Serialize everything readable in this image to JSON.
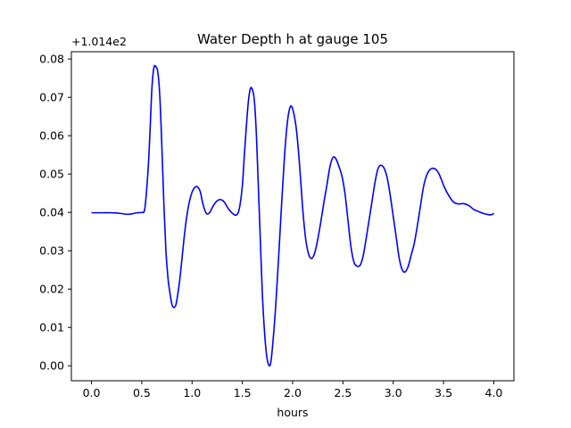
{
  "chart_data": {
    "type": "line",
    "title": "Water Depth h at gauge 105",
    "xlabel": "hours",
    "ylabel": "",
    "y_offset_label": "+1.014e2",
    "xlim": [
      -0.2,
      4.2
    ],
    "ylim": [
      -0.0039,
      0.0819
    ],
    "grid": false,
    "legend": "none",
    "x_ticks": [
      0.0,
      0.5,
      1.0,
      1.5,
      2.0,
      2.5,
      3.0,
      3.5,
      4.0
    ],
    "x_tick_labels": [
      "0.0",
      "0.5",
      "1.0",
      "1.5",
      "2.0",
      "2.5",
      "3.0",
      "3.5",
      "4.0"
    ],
    "y_ticks": [
      0.0,
      0.01,
      0.02,
      0.03,
      0.04,
      0.05,
      0.06,
      0.07,
      0.08
    ],
    "y_tick_labels": [
      "0.00",
      "0.01",
      "0.02",
      "0.03",
      "0.04",
      "0.05",
      "0.06",
      "0.07",
      "0.08"
    ],
    "series": [
      {
        "color": "#0000ff",
        "x": [
          0.0,
          0.1,
          0.2,
          0.3,
          0.35,
          0.4,
          0.45,
          0.5,
          0.53,
          0.56,
          0.58,
          0.6,
          0.62,
          0.64,
          0.66,
          0.68,
          0.7,
          0.72,
          0.74,
          0.76,
          0.78,
          0.8,
          0.82,
          0.84,
          0.86,
          0.88,
          0.9,
          0.93,
          0.96,
          0.99,
          1.02,
          1.05,
          1.08,
          1.11,
          1.14,
          1.17,
          1.2,
          1.23,
          1.26,
          1.29,
          1.32,
          1.36,
          1.4,
          1.44,
          1.47,
          1.5,
          1.52,
          1.54,
          1.56,
          1.58,
          1.6,
          1.62,
          1.64,
          1.66,
          1.68,
          1.7,
          1.72,
          1.74,
          1.76,
          1.78,
          1.8,
          1.83,
          1.86,
          1.89,
          1.92,
          1.95,
          1.98,
          2.01,
          2.04,
          2.07,
          2.1,
          2.13,
          2.16,
          2.19,
          2.22,
          2.25,
          2.28,
          2.31,
          2.34,
          2.37,
          2.4,
          2.43,
          2.46,
          2.49,
          2.52,
          2.55,
          2.58,
          2.61,
          2.64,
          2.67,
          2.7,
          2.73,
          2.76,
          2.79,
          2.82,
          2.85,
          2.88,
          2.91,
          2.94,
          2.97,
          3.0,
          3.03,
          3.06,
          3.09,
          3.12,
          3.15,
          3.18,
          3.21,
          3.24,
          3.27,
          3.3,
          3.33,
          3.36,
          3.39,
          3.42,
          3.45,
          3.48,
          3.51,
          3.55,
          3.6,
          3.65,
          3.7,
          3.75,
          3.8,
          3.85,
          3.9,
          3.95,
          3.98,
          4.0
        ],
        "y": [
          0.0399,
          0.0399,
          0.0399,
          0.0397,
          0.0395,
          0.0396,
          0.0399,
          0.04,
          0.041,
          0.05,
          0.06,
          0.072,
          0.0777,
          0.078,
          0.0765,
          0.07,
          0.057,
          0.042,
          0.03,
          0.023,
          0.019,
          0.016,
          0.0152,
          0.016,
          0.019,
          0.023,
          0.028,
          0.0355,
          0.041,
          0.0445,
          0.0463,
          0.0467,
          0.0455,
          0.042,
          0.0398,
          0.0398,
          0.0412,
          0.0425,
          0.0432,
          0.0433,
          0.0427,
          0.041,
          0.0398,
          0.0393,
          0.041,
          0.047,
          0.055,
          0.0625,
          0.069,
          0.0723,
          0.072,
          0.069,
          0.06,
          0.046,
          0.032,
          0.018,
          0.009,
          0.003,
          0.0003,
          0.0005,
          0.005,
          0.015,
          0.028,
          0.042,
          0.055,
          0.064,
          0.0677,
          0.066,
          0.061,
          0.052,
          0.041,
          0.033,
          0.029,
          0.028,
          0.0295,
          0.033,
          0.0375,
          0.0425,
          0.047,
          0.0518,
          0.0543,
          0.054,
          0.052,
          0.0495,
          0.045,
          0.038,
          0.031,
          0.027,
          0.026,
          0.0262,
          0.0285,
          0.033,
          0.038,
          0.043,
          0.048,
          0.0515,
          0.0523,
          0.0515,
          0.049,
          0.0445,
          0.039,
          0.0335,
          0.028,
          0.025,
          0.0245,
          0.026,
          0.029,
          0.032,
          0.0365,
          0.0415,
          0.0465,
          0.0495,
          0.051,
          0.0515,
          0.0513,
          0.0503,
          0.0485,
          0.0465,
          0.0445,
          0.0427,
          0.0422,
          0.0423,
          0.0418,
          0.0408,
          0.0402,
          0.0397,
          0.0394,
          0.0394,
          0.0398
        ]
      }
    ]
  }
}
